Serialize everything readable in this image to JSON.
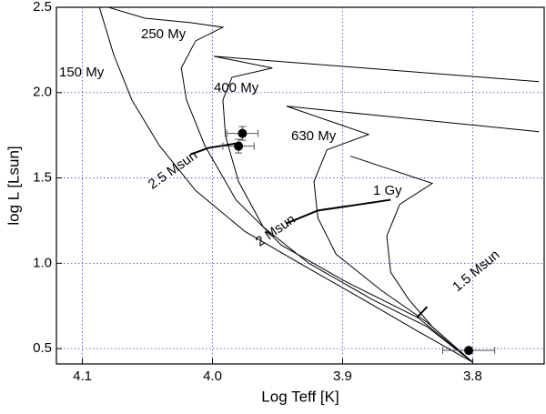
{
  "chart_data": {
    "type": "line",
    "xlabel": "Log Teff [K]",
    "ylabel": "log L [Lsun]",
    "xlim": [
      4.12,
      3.745
    ],
    "ylim": [
      0.41,
      2.5
    ],
    "xticks": [
      4.1,
      {
        "value": 4,
        "label": "4.0"
      },
      3.9,
      3.8
    ],
    "yticks": [
      0.5,
      {
        "value": 1,
        "label": "1.0"
      },
      1.5,
      {
        "value": 2,
        "label": "2.0"
      },
      2.5
    ],
    "grid": true,
    "series": [
      {
        "name": "150 My",
        "color": "#000000",
        "width": 1,
        "x": [
          4.087,
          4.076,
          4.062,
          4.041,
          4.013,
          3.975,
          3.933,
          3.884,
          3.842,
          3.8
        ],
        "values": [
          2.5,
          2.223,
          1.957,
          1.691,
          1.426,
          1.186,
          1.0,
          0.787,
          0.601,
          0.42
        ]
      },
      {
        "name": "250 My",
        "color": "#000000",
        "width": 1,
        "x": [
          4.08,
          4.052,
          4.017,
          3.992,
          4.013,
          4.024,
          4.02,
          4.006,
          3.982,
          3.947,
          3.898,
          3.842,
          3.8
        ],
        "values": [
          2.5,
          2.436,
          2.41,
          2.383,
          2.303,
          2.144,
          1.957,
          1.691,
          1.372,
          1.106,
          0.894,
          0.681,
          0.42
        ]
      },
      {
        "name": "400 My",
        "color": "#000000",
        "width": 1,
        "x": [
          3.749,
          3.999,
          3.954,
          3.985,
          3.992,
          3.99,
          3.98,
          3.961,
          3.926,
          3.877,
          3.835,
          3.8
        ],
        "values": [
          2.064,
          2.213,
          2.144,
          2.09,
          1.957,
          1.745,
          1.479,
          1.213,
          1.0,
          0.787,
          0.628,
          0.42
        ]
      },
      {
        "name": "630 My",
        "color": "#000000",
        "width": 1,
        "x": [
          3.749,
          3.943,
          3.88,
          3.912,
          3.922,
          3.919,
          3.905,
          3.87,
          3.835,
          3.8
        ],
        "values": [
          1.771,
          1.92,
          1.755,
          1.665,
          1.479,
          1.266,
          1.053,
          0.84,
          0.654,
          0.42
        ]
      },
      {
        "name": "1 Gy",
        "color": "#000000",
        "width": 1,
        "x": [
          3.894,
          3.831,
          3.856,
          3.866,
          3.863,
          3.849,
          3.831,
          3.8
        ],
        "values": [
          1.628,
          1.468,
          1.346,
          1.16,
          0.947,
          0.787,
          0.628,
          0.42
        ]
      },
      {
        "name": "2.5 Msun",
        "color": "#000000",
        "width": 2,
        "x": [
          4.017,
          4.003,
          3.978
        ],
        "values": [
          1.638,
          1.676,
          1.707
        ]
      },
      {
        "name": "2 Msun",
        "color": "#000000",
        "width": 2,
        "x": [
          3.943,
          3.919,
          3.863
        ],
        "values": [
          1.234,
          1.309,
          1.372
        ]
      },
      {
        "name": "1.5 Msun",
        "color": "#000000",
        "width": 2,
        "x": [
          3.843,
          3.835
        ],
        "values": [
          0.681,
          0.745
        ]
      }
    ],
    "points": {
      "color": "#000000",
      "x": [
        3.977,
        3.98,
        3.803
      ],
      "values": [
        1.761,
        1.686,
        0.489
      ],
      "xerr": [
        0.012,
        0.012,
        0.02
      ],
      "yerr": [
        0.04,
        0.04,
        0.01
      ]
    }
  }
}
